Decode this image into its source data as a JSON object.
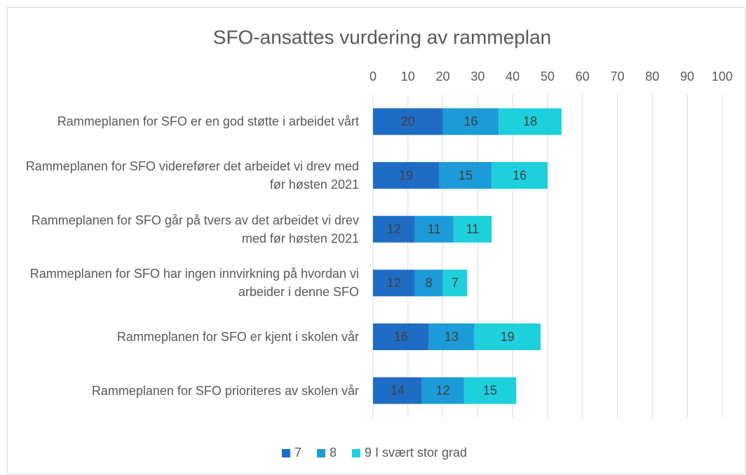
{
  "chart_data": {
    "type": "stacked_barh",
    "title": "SFO-ansattes vurdering av rammeplan",
    "categories": [
      "Rammeplanen for SFO er en god støtte i arbeidet vårt",
      "Rammeplanen for SFO viderefører det arbeidet vi drev med før høsten 2021",
      "Rammeplanen for SFO går på tvers av det arbeidet vi drev med før høsten 2021",
      "Rammeplanen for SFO har ingen innvirkning på hvordan vi arbeider i denne SFO",
      "Rammeplanen for SFO er kjent i skolen vår",
      "Rammeplanen for SFO prioriteres av skolen vår"
    ],
    "series": [
      {
        "name": "7",
        "color": "#1f6cc5",
        "values": [
          20,
          19,
          12,
          12,
          16,
          14
        ]
      },
      {
        "name": "8",
        "color": "#1c9bd8",
        "values": [
          16,
          15,
          11,
          8,
          13,
          12
        ]
      },
      {
        "name": "9 I svært stor grad",
        "color": "#1ecfdc",
        "values": [
          18,
          16,
          11,
          7,
          19,
          15
        ]
      }
    ],
    "xlim": [
      0,
      100
    ],
    "xticks": [
      0,
      10,
      20,
      30,
      40,
      50,
      60,
      70,
      80,
      90,
      100
    ],
    "grid": true,
    "legend": "bottom"
  }
}
